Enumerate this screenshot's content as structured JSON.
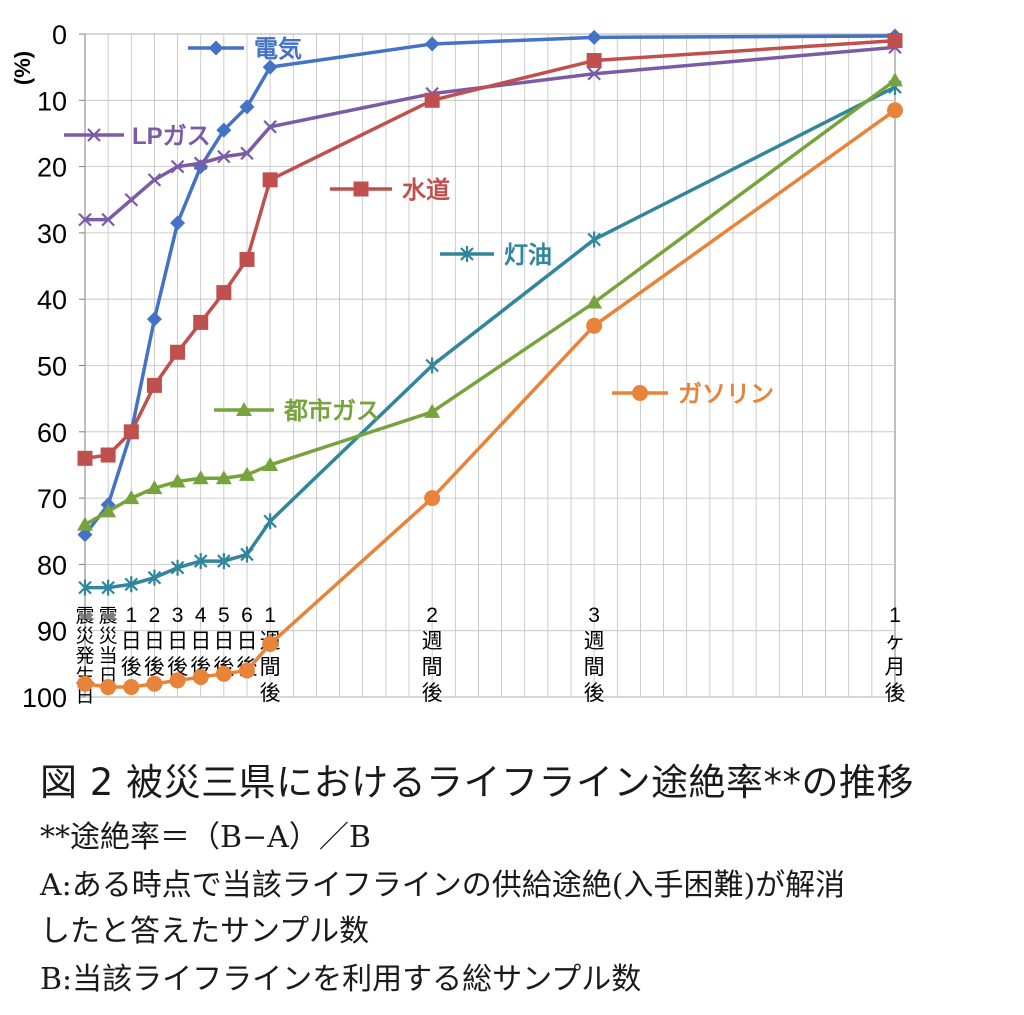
{
  "chart_data": {
    "type": "line",
    "ylabel": "(%)",
    "ylim": [
      0,
      100
    ],
    "y_inverted": true,
    "y_ticks": [
      0,
      10,
      20,
      30,
      40,
      50,
      60,
      70,
      80,
      90,
      100
    ],
    "grid": true,
    "categories": [
      {
        "id": "d0",
        "label": "震災発生日"
      },
      {
        "id": "d0b",
        "label": "震災当日"
      },
      {
        "id": "d1",
        "label": "1日後"
      },
      {
        "id": "d2",
        "label": "2日後"
      },
      {
        "id": "d3",
        "label": "3日後"
      },
      {
        "id": "d4",
        "label": "4日後"
      },
      {
        "id": "d5",
        "label": "5日後"
      },
      {
        "id": "d6",
        "label": "6日後"
      },
      {
        "id": "w1",
        "label": "1週間後"
      },
      {
        "id": "w2",
        "label": "2週間後"
      },
      {
        "id": "w3",
        "label": "3週間後"
      },
      {
        "id": "m1",
        "label": "1ヶ月後"
      }
    ],
    "series": [
      {
        "name": "電気",
        "color": "#4472c4",
        "marker": "diamond",
        "values": [
          75.5,
          71,
          60,
          43,
          28.5,
          20,
          14.5,
          11,
          5,
          1.5,
          0.5,
          0.3
        ]
      },
      {
        "name": "LPガス",
        "color": "#7b5ba5",
        "marker": "x",
        "values": [
          28,
          28,
          25,
          22,
          20,
          19.5,
          18.5,
          18,
          14,
          9,
          6,
          2
        ]
      },
      {
        "name": "水道",
        "color": "#c0504d",
        "marker": "square",
        "values": [
          64,
          63.5,
          60,
          53,
          48,
          43.5,
          39,
          34,
          22,
          10,
          4,
          1
        ]
      },
      {
        "name": "灯油",
        "color": "#31859c",
        "marker": "star",
        "values": [
          83.5,
          83.5,
          83,
          82,
          80.5,
          79.5,
          79.5,
          78.5,
          73.5,
          50,
          31,
          8
        ]
      },
      {
        "name": "都市ガス",
        "color": "#77a33c",
        "marker": "triangle",
        "values": [
          74,
          72,
          70,
          68.5,
          67.5,
          67,
          67,
          66.5,
          65,
          57,
          40.5,
          7
        ]
      },
      {
        "name": "ガソリン",
        "color": "#e8833a",
        "marker": "circle",
        "values": [
          98,
          98.5,
          98.5,
          98,
          97.5,
          97,
          96.5,
          96,
          92,
          70,
          44,
          11.5
        ]
      }
    ]
  },
  "caption": {
    "title": "図 2 被災三県におけるライフライン途絶率**の推移",
    "note": "**途絶率＝（B−A）／B",
    "a_line1": "A:ある時点で当該ライフラインの供給途絶(入手困難)が解消",
    "a_line2": "したと答えたサンプル数",
    "b_line": "B:当該ライフラインを利用する総サンプル数"
  }
}
